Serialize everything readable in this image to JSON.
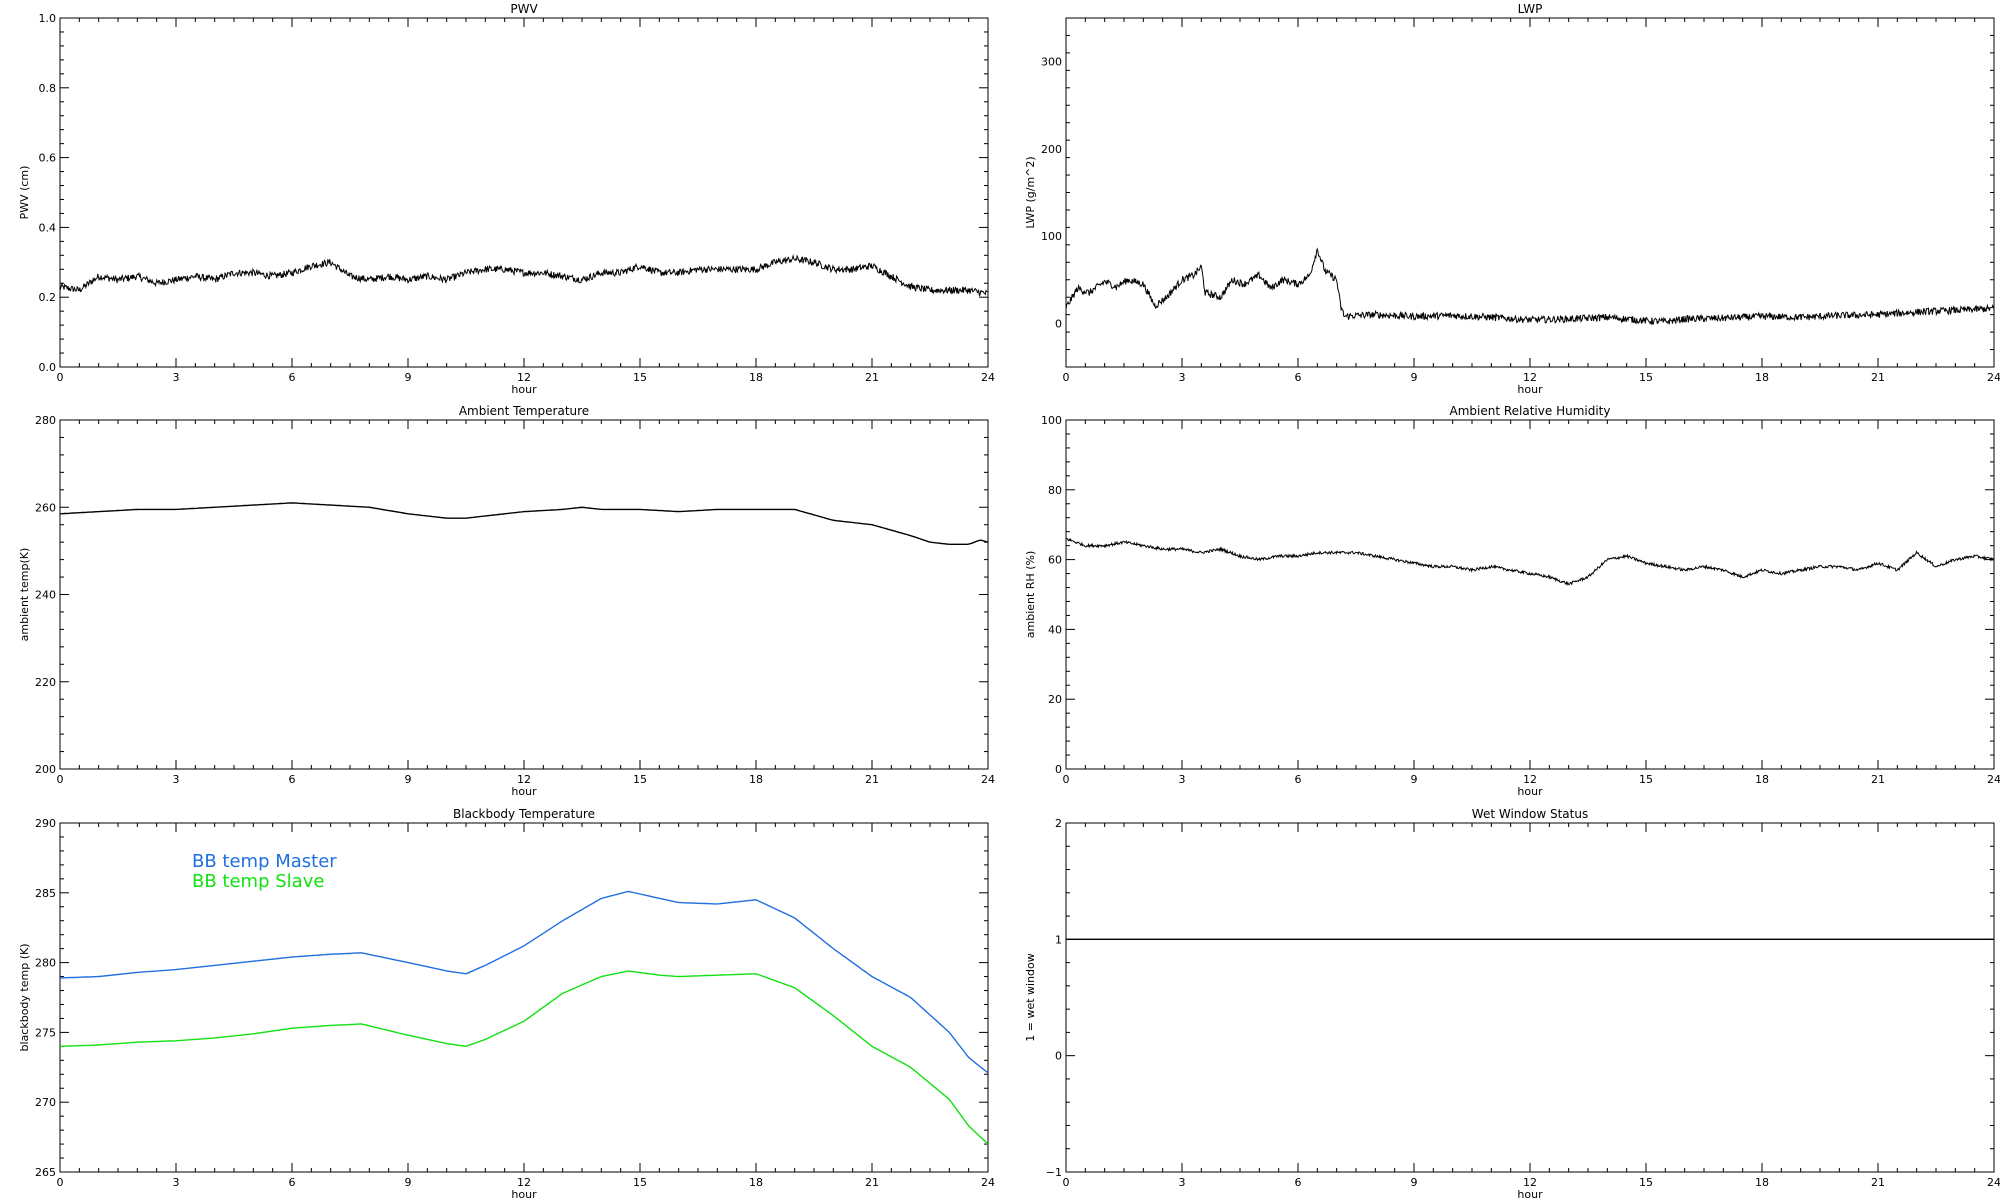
{
  "colors": {
    "axis": "#000000",
    "master": "#1f6fe0",
    "slave": "#11e011",
    "data": "#000000"
  },
  "chart_data": [
    {
      "id": "pwv",
      "type": "scatter",
      "title": "PWV",
      "xlabel": "hour",
      "ylabel": "PWV (cm)",
      "xlim": [
        0,
        24
      ],
      "ylim": [
        0,
        1.0
      ],
      "xticks": [
        0,
        3,
        6,
        9,
        12,
        15,
        18,
        21,
        24
      ],
      "yticks": [
        0,
        0.2,
        0.4,
        0.6,
        0.8,
        1.0
      ],
      "ytick_labels": [
        "0.0",
        "0.2",
        "0.4",
        "0.6",
        "0.8",
        "1.0"
      ],
      "grid": false,
      "series": [
        {
          "style": "noisy-line",
          "color": "#000000",
          "noise": 0.01,
          "x": [
            0,
            0.5,
            1,
            1.5,
            2,
            2.5,
            3,
            3.5,
            4,
            4.5,
            5,
            5.5,
            6,
            6.5,
            7,
            7.5,
            8,
            8.5,
            9,
            9.5,
            10,
            10.5,
            11,
            11.5,
            12,
            12.5,
            13,
            13.5,
            14,
            14.5,
            15,
            15.5,
            16,
            16.5,
            17,
            17.5,
            18,
            18.5,
            19,
            19.5,
            20,
            20.5,
            21,
            21.5,
            22,
            22.5,
            23,
            23.5,
            24
          ],
          "y": [
            0.23,
            0.22,
            0.26,
            0.25,
            0.26,
            0.24,
            0.25,
            0.26,
            0.25,
            0.27,
            0.27,
            0.26,
            0.27,
            0.29,
            0.3,
            0.26,
            0.25,
            0.26,
            0.25,
            0.26,
            0.25,
            0.27,
            0.28,
            0.28,
            0.27,
            0.27,
            0.26,
            0.25,
            0.27,
            0.27,
            0.29,
            0.27,
            0.27,
            0.28,
            0.28,
            0.28,
            0.28,
            0.3,
            0.31,
            0.3,
            0.28,
            0.28,
            0.29,
            0.26,
            0.23,
            0.22,
            0.22,
            0.22,
            0.21
          ]
        }
      ]
    },
    {
      "id": "lwp",
      "type": "scatter",
      "title": "LWP",
      "xlabel": "hour",
      "ylabel": "LWP (g/m^2)",
      "xlim": [
        0,
        24
      ],
      "ylim": [
        -50,
        350
      ],
      "xticks": [
        0,
        3,
        6,
        9,
        12,
        15,
        18,
        21,
        24
      ],
      "yticks": [
        0,
        100,
        200,
        300
      ],
      "ytick_labels": [
        "0",
        "100",
        "200",
        "300"
      ],
      "grid": false,
      "series": [
        {
          "style": "noisy-line",
          "color": "#000000",
          "noise": 4,
          "x": [
            0,
            0.3,
            0.6,
            1,
            1.3,
            1.6,
            2,
            2.3,
            2.6,
            3,
            3.3,
            3.5,
            3.6,
            4,
            4.3,
            4.6,
            5,
            5.3,
            5.6,
            6,
            6.3,
            6.5,
            6.7,
            7,
            7.1,
            7.2,
            7.5,
            8,
            9,
            10,
            11,
            12,
            13,
            14,
            15,
            15.5,
            16,
            17,
            18,
            19,
            20,
            21,
            22,
            23,
            24
          ],
          "y": [
            18,
            40,
            35,
            48,
            42,
            50,
            45,
            20,
            30,
            50,
            55,
            65,
            35,
            30,
            50,
            45,
            55,
            40,
            50,
            45,
            55,
            85,
            60,
            50,
            20,
            8,
            9,
            10,
            8,
            9,
            7,
            4,
            5,
            7,
            3,
            2,
            5,
            6,
            8,
            7,
            9,
            10,
            13,
            15,
            17
          ]
        }
      ]
    },
    {
      "id": "ambient-temp",
      "type": "line",
      "title": "Ambient Temperature",
      "xlabel": "hour",
      "ylabel": "ambient temp(K)",
      "xlim": [
        0,
        24
      ],
      "ylim": [
        200,
        280
      ],
      "xticks": [
        0,
        3,
        6,
        9,
        12,
        15,
        18,
        21,
        24
      ],
      "yticks": [
        200,
        220,
        240,
        260,
        280
      ],
      "ytick_labels": [
        "200",
        "220",
        "240",
        "260",
        "280"
      ],
      "grid": false,
      "series": [
        {
          "style": "line",
          "color": "#000000",
          "noise": 0,
          "x": [
            0,
            1,
            2,
            3,
            4,
            5,
            6,
            7,
            8,
            9,
            10,
            10.5,
            11,
            12,
            13,
            13.5,
            14,
            15,
            16,
            17,
            18,
            19,
            20,
            21,
            22,
            22.5,
            23,
            23.5,
            23.8,
            24
          ],
          "y": [
            258.5,
            259,
            259.5,
            259.5,
            260,
            260.5,
            261,
            260.5,
            260,
            258.5,
            257.5,
            257.5,
            258,
            259,
            259.5,
            260,
            259.5,
            259.5,
            259,
            259.5,
            259.5,
            259.5,
            257,
            256,
            253.5,
            252,
            251.5,
            251.5,
            252.5,
            252
          ]
        }
      ]
    },
    {
      "id": "ambient-rh",
      "type": "line",
      "title": "Ambient Relative Humidity",
      "xlabel": "hour",
      "ylabel": "ambient RH (%)",
      "xlim": [
        0,
        24
      ],
      "ylim": [
        0,
        100
      ],
      "xticks": [
        0,
        3,
        6,
        9,
        12,
        15,
        18,
        21,
        24
      ],
      "yticks": [
        0,
        20,
        40,
        60,
        80,
        100
      ],
      "ytick_labels": [
        "0",
        "20",
        "40",
        "60",
        "80",
        "100"
      ],
      "grid": false,
      "series": [
        {
          "style": "noisy-line",
          "color": "#000000",
          "noise": 0.4,
          "x": [
            0,
            0.5,
            1,
            1.5,
            2,
            2.5,
            3,
            3.5,
            4,
            4.5,
            5,
            5.5,
            6,
            6.5,
            7,
            7.5,
            8,
            8.5,
            9,
            9.5,
            10,
            10.5,
            11,
            11.5,
            12,
            12.5,
            13,
            13.5,
            14,
            14.5,
            15,
            15.5,
            16,
            16.5,
            17,
            17.5,
            18,
            18.5,
            19,
            19.5,
            20,
            20.5,
            21,
            21.5,
            22,
            22.5,
            23,
            23.5,
            24
          ],
          "y": [
            66,
            64,
            64,
            65,
            64,
            63,
            63,
            62,
            63,
            61,
            60,
            61,
            61,
            62,
            62,
            62,
            61,
            60,
            59,
            58,
            58,
            57,
            58,
            57,
            56,
            55,
            53,
            55,
            60,
            61,
            59,
            58,
            57,
            58,
            57,
            55,
            57,
            56,
            57,
            58,
            58,
            57,
            59,
            57,
            62,
            58,
            60,
            61,
            60
          ]
        }
      ]
    },
    {
      "id": "blackbody-temp",
      "type": "line",
      "title": "Blackbody Temperature",
      "xlabel": "hour",
      "ylabel": "blackbody temp (K)",
      "xlim": [
        0,
        24
      ],
      "ylim": [
        265,
        290
      ],
      "xticks": [
        0,
        3,
        6,
        9,
        12,
        15,
        18,
        21,
        24
      ],
      "yticks": [
        265,
        270,
        275,
        280,
        285,
        290
      ],
      "ytick_labels": [
        "265",
        "270",
        "275",
        "280",
        "285",
        "290"
      ],
      "grid": false,
      "legend": "top-left",
      "series": [
        {
          "name": "BB temp Master",
          "style": "line",
          "color": "#1f6fe0",
          "noise": 0,
          "x": [
            0,
            1,
            2,
            3,
            4,
            5,
            6,
            7,
            7.8,
            9,
            10,
            10.5,
            11,
            12,
            13,
            14,
            14.7,
            15.5,
            16,
            17,
            18,
            19,
            20,
            21,
            22,
            23,
            23.5,
            24
          ],
          "y": [
            278.9,
            279.0,
            279.3,
            279.5,
            279.8,
            280.1,
            280.4,
            280.6,
            280.7,
            280,
            279.4,
            279.2,
            279.8,
            281.2,
            283,
            284.6,
            285.1,
            284.6,
            284.3,
            284.2,
            284.5,
            283.2,
            281,
            279,
            277.5,
            275,
            273.2,
            272.1
          ]
        },
        {
          "name": "BB temp Slave",
          "style": "line",
          "color": "#11e011",
          "noise": 0,
          "x": [
            0,
            1,
            2,
            3,
            4,
            5,
            6,
            7,
            7.8,
            9,
            10,
            10.5,
            11,
            12,
            13,
            14,
            14.7,
            15.5,
            16,
            17,
            18,
            19,
            20,
            21,
            22,
            23,
            23.5,
            24
          ],
          "y": [
            274.0,
            274.1,
            274.3,
            274.4,
            274.6,
            274.9,
            275.3,
            275.5,
            275.6,
            274.8,
            274.2,
            274.0,
            274.5,
            275.8,
            277.8,
            279.0,
            279.4,
            279.1,
            279.0,
            279.1,
            279.2,
            278.2,
            276.2,
            274.0,
            272.5,
            270.2,
            268.3,
            267.0
          ]
        }
      ]
    },
    {
      "id": "wet-window",
      "type": "line",
      "title": "Wet Window Status",
      "xlabel": "hour",
      "ylabel": "1 = wet window",
      "xlim": [
        0,
        24
      ],
      "ylim": [
        -1,
        2
      ],
      "xticks": [
        0,
        3,
        6,
        9,
        12,
        15,
        18,
        21,
        24
      ],
      "yticks": [
        -1,
        0,
        1,
        2
      ],
      "ytick_labels": [
        "−1",
        "0",
        "1",
        "2"
      ],
      "grid": false,
      "series": [
        {
          "style": "line",
          "color": "#000000",
          "noise": 0,
          "x": [
            0,
            24
          ],
          "y": [
            1,
            1
          ]
        }
      ]
    }
  ]
}
